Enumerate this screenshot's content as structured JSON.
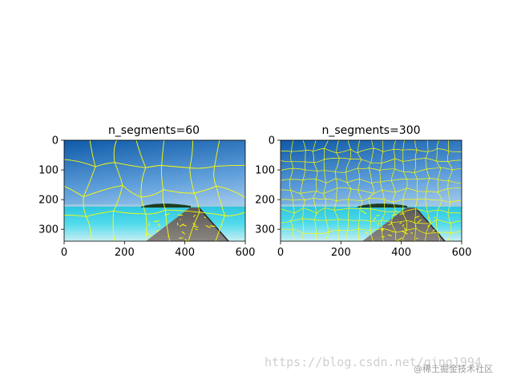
{
  "figure": {
    "panels": [
      {
        "title": "n_segments=60",
        "x_ticks": [
          "0",
          "200",
          "400",
          "600"
        ],
        "y_ticks": [
          "0",
          "100",
          "200",
          "300"
        ],
        "xlim": [
          0,
          600
        ],
        "ylim": [
          340,
          0
        ],
        "grid_cols": 7,
        "grid_rows": 4
      },
      {
        "title": "n_segments=300",
        "x_ticks": [
          "0",
          "200",
          "400",
          "600"
        ],
        "y_ticks": [
          "0",
          "100",
          "200",
          "300"
        ],
        "xlim": [
          0,
          600
        ],
        "ylim": [
          340,
          0
        ],
        "grid_cols": 16,
        "grid_rows": 10
      }
    ]
  },
  "colors": {
    "sky_top": "#0f5aa8",
    "sky_bottom": "#cde7f6",
    "sea": "#3fd3e6",
    "sea_deep": "#27a9d6",
    "dock": "#6d6a66",
    "boundary": "#ffff00",
    "island": "#1e3d22"
  },
  "watermark": {
    "url": "https://blog.csdn.net/qing1994",
    "community": "@稀土掘金技术社区"
  }
}
